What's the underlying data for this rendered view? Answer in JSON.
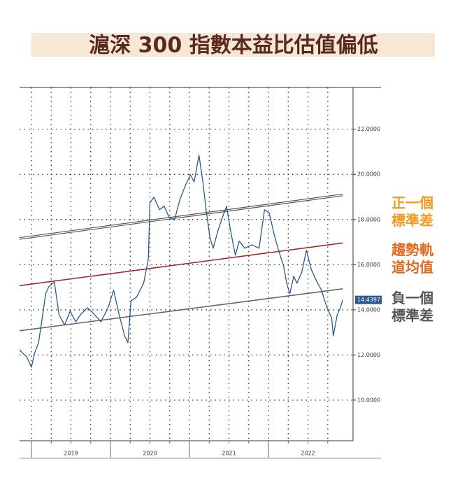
{
  "chart_data": {
    "type": "line",
    "title": "滬深 300 指數本益比估值偏低",
    "x": [
      2018.85,
      2018.89,
      2018.94,
      2019.0,
      2019.04,
      2019.09,
      2019.13,
      2019.18,
      2019.22,
      2019.29,
      2019.35,
      2019.42,
      2019.49,
      2019.56,
      2019.62,
      2019.71,
      2019.8,
      2019.88,
      2019.97,
      2020.04,
      2020.11,
      2020.18,
      2020.22,
      2020.26,
      2020.33,
      2020.42,
      2020.48,
      2020.5,
      2020.55,
      2020.62,
      2020.68,
      2020.74,
      2020.81,
      2020.88,
      2020.95,
      2021.01,
      2021.06,
      2021.12,
      2021.17,
      2021.21,
      2021.26,
      2021.3,
      2021.36,
      2021.42,
      2021.47,
      2021.52,
      2021.58,
      2021.63,
      2021.7,
      2021.79,
      2021.88,
      2021.95,
      2022.01,
      2022.07,
      2022.12,
      2022.19,
      2022.23,
      2022.27,
      2022.32,
      2022.36,
      2022.42,
      2022.48,
      2022.54,
      2022.6,
      2022.67,
      2022.74,
      2022.8,
      2022.82,
      2022.87,
      2022.91,
      2022.94
    ],
    "series": [
      {
        "color": "#2c5a8c",
        "values": [
          12.23,
          12.08,
          11.92,
          11.46,
          12.08,
          12.54,
          13.47,
          14.71,
          15.02,
          15.24,
          13.78,
          13.32,
          13.94,
          13.47,
          13.78,
          14.09,
          13.78,
          13.47,
          14.09,
          14.87,
          13.78,
          12.85,
          12.54,
          14.4,
          14.56,
          15.18,
          16.26,
          18.74,
          18.99,
          18.43,
          18.59,
          18.12,
          17.97,
          18.9,
          19.52,
          19.98,
          19.67,
          20.85,
          19.67,
          18.43,
          17.19,
          16.73,
          17.5,
          18.12,
          18.59,
          17.5,
          16.42,
          17.04,
          16.73,
          16.88,
          16.73,
          18.43,
          18.28,
          17.35,
          16.73,
          15.95,
          15.18,
          14.71,
          15.49,
          15.18,
          15.64,
          16.64,
          15.8,
          15.33,
          14.87,
          14.09,
          13.63,
          12.85,
          13.78,
          14.09,
          14.4397
        ]
      }
    ],
    "trend_lines": [
      {
        "name": "正一個標準差",
        "color": "#f39a1e",
        "line_color": "#555555",
        "x": [
          2018.85,
          2022.94
        ],
        "values": [
          17.16,
          19.09
        ]
      },
      {
        "name": "趨勢軌道均值",
        "color": "#e06a1e",
        "line_color": "#a0282a",
        "x": [
          2018.85,
          2022.94
        ],
        "values": [
          15.07,
          16.96
        ]
      },
      {
        "name": "負一個標準差",
        "color": "#555555",
        "line_color": "#666666",
        "x": [
          2018.85,
          2022.94
        ],
        "values": [
          13.07,
          14.93
        ]
      }
    ],
    "xlim": [
      2018.85,
      2023.07
    ],
    "xticks": [
      {
        "value": 2019.5,
        "label": "2019"
      },
      {
        "value": 2020.5,
        "label": "2020"
      },
      {
        "value": 2021.5,
        "label": "2021"
      },
      {
        "value": 2022.5,
        "label": "2022"
      }
    ],
    "xgrid": [
      2019,
      2019.25,
      2019.5,
      2019.75,
      2020,
      2020.25,
      2020.5,
      2020.75,
      2021,
      2021.25,
      2021.5,
      2021.75,
      2022,
      2022.25,
      2022.5,
      2022.75
    ],
    "ylim": [
      8.2,
      23.85
    ],
    "yticks": [
      {
        "value": 10,
        "label": "10.0000"
      },
      {
        "value": 12,
        "label": "12.0000"
      },
      {
        "value": 14,
        "label": "14.0000"
      },
      {
        "value": 16,
        "label": "16.0000"
      },
      {
        "value": 18,
        "label": "18.0000"
      },
      {
        "value": 20,
        "label": "20.0000"
      },
      {
        "value": 22,
        "label": "22.0000"
      }
    ],
    "grid": true
  }
}
